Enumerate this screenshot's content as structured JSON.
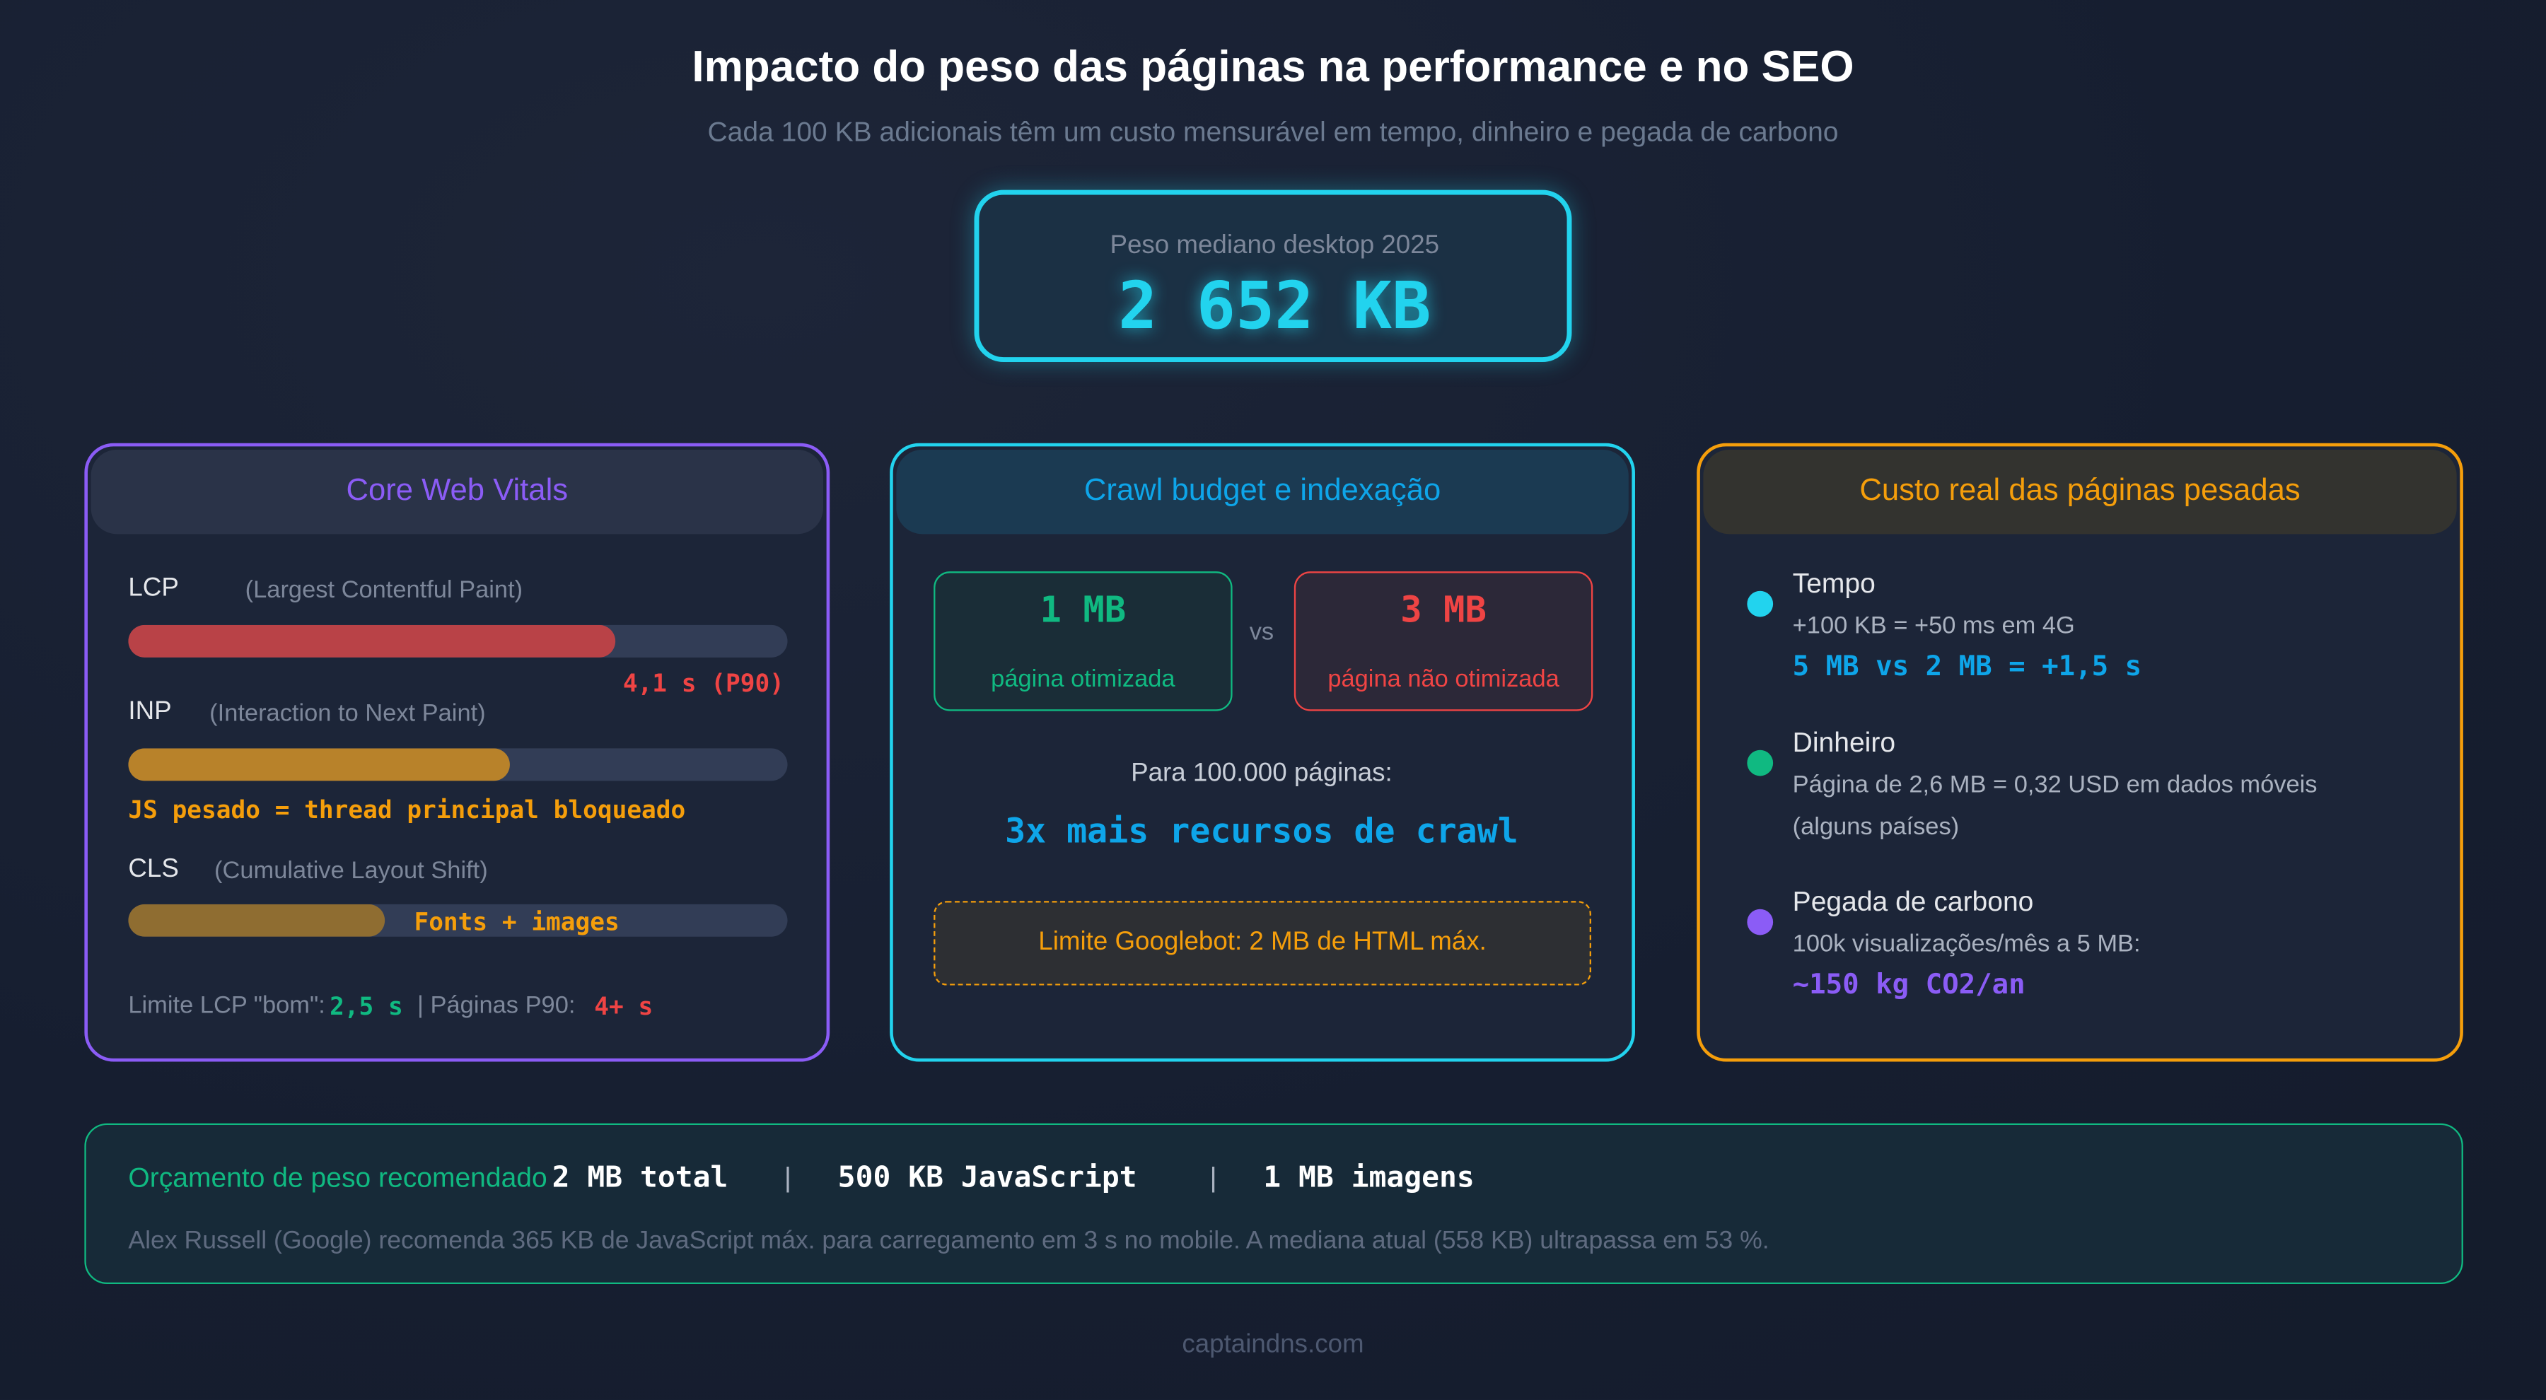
{
  "header": {
    "title": "Impacto do peso das páginas na performance e no SEO",
    "subtitle": "Cada 100 KB adicionais têm um custo mensurável em tempo, dinheiro e pegada de carbono"
  },
  "hero": {
    "label": "Peso mediano desktop 2025",
    "value": "2 652 KB"
  },
  "colors": {
    "purple": "#8b5cf6",
    "cyan": "#22d3ee",
    "orange": "#f59e0b",
    "green": "#10b981",
    "red": "#ef4444",
    "blue": "#0ea5e9"
  },
  "cwv": {
    "title": "Core Web Vitals",
    "lcp": {
      "name": "LCP",
      "desc": "(Largest Contentful Paint)",
      "fill_pct": 74,
      "value": "4,1 s (P90)"
    },
    "inp": {
      "name": "INP",
      "desc": "(Interaction to Next Paint)",
      "fill_pct": 58,
      "note": "JS pesado = thread principal bloqueado"
    },
    "cls": {
      "name": "CLS",
      "desc": "(Cumulative Layout Shift)",
      "fill_pct": 39,
      "note": "Fonts + images"
    },
    "footer": {
      "prefix": "Limite LCP \"bom\":",
      "good": "2,5 s",
      "middle": "| Páginas P90:",
      "bad": "4+ s"
    }
  },
  "crawl": {
    "title": "Crawl budget e indexação",
    "optimized": {
      "value": "1 MB",
      "label": "página otimizada"
    },
    "vs": "vs",
    "unoptimized": {
      "value": "3 MB",
      "label": "página não otimizada"
    },
    "pages_label": "Para 100.000 páginas:",
    "result": "3x mais recursos de crawl",
    "limit": "Limite Googlebot: 2 MB de HTML máx."
  },
  "cost": {
    "title": "Custo real das páginas pesadas",
    "items": [
      {
        "title": "Tempo",
        "lines": [
          "+100 KB = +50 ms em 4G"
        ],
        "highlight": "5 MB vs 2 MB = +1,5 s"
      },
      {
        "title": "Dinheiro",
        "lines": [
          "Página de 2,6 MB = 0,32 USD em dados móveis",
          "(alguns países)"
        ]
      },
      {
        "title": "Pegada de carbono",
        "lines": [
          "100k visualizações/mês a 5 MB:"
        ],
        "highlight": "~150 kg CO2/an"
      }
    ]
  },
  "budget": {
    "title": "Orçamento de peso recomendado",
    "total": "2 MB total",
    "sep": "|",
    "js": "500 KB JavaScript",
    "images": "1 MB imagens",
    "description": "Alex Russell (Google) recomenda 365 KB de JavaScript máx. para carregamento em 3 s no mobile. A mediana atual (558 KB) ultrapassa em 53 %."
  },
  "footer": "captaindns.com"
}
